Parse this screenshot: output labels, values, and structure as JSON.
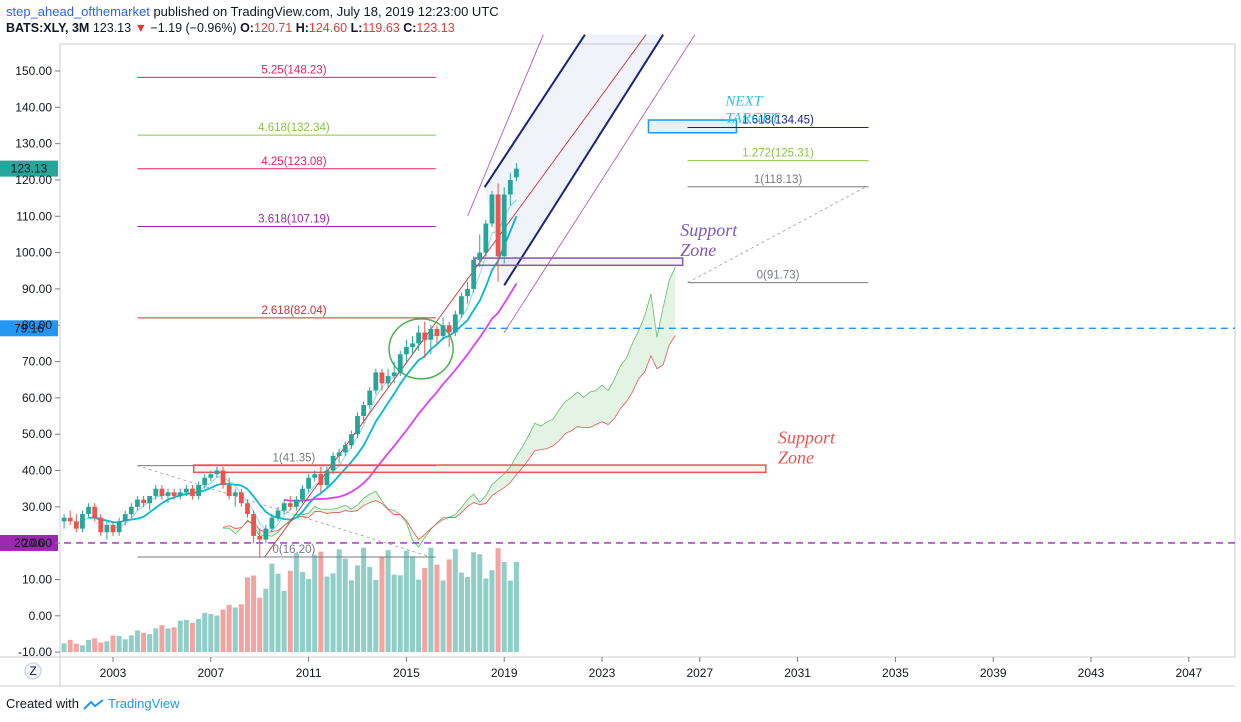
{
  "header": {
    "author": "step_ahead_ofthemarket",
    "published": "published on TradingView.com, July 18, 2019 12:23:00 UTC",
    "symbol": "BATS:XLY, 3M",
    "last": "123.13",
    "change": "−1.19 (−0.96%)",
    "open_label": "O:",
    "open": "120.71",
    "high_label": "H:",
    "high": "124.60",
    "low_label": "L:",
    "low": "119.63",
    "close_label": "C:",
    "close": "123.13"
  },
  "footer": {
    "created_with": "Created with",
    "brand": "TradingView"
  },
  "zoom_button": "Z",
  "colors": {
    "up": "#26a69a",
    "down": "#ef5350",
    "fib_red": "#d32f2f",
    "fib_pink": "#e91e63",
    "fib_green": "#8bc34a",
    "fib_purple": "#9c27b0",
    "fib_gray": "#787b86",
    "channel_blue": "#1a237e",
    "price_badge": "#26a69a",
    "hline_blue": "#2196f3",
    "hline_purple": "#9c27b0",
    "note_teal": "#26c6da",
    "note_purple": "#7e57c2",
    "note_red": "#ef5350"
  },
  "chart_data": {
    "type": "candlestick",
    "title": "",
    "y_axis": {
      "range": [
        -10,
        155
      ],
      "ticks": [
        "150.00",
        "140.00",
        "130.00",
        "120.00",
        "110.00",
        "100.00",
        "90.00",
        "80.00",
        "70.00",
        "60.00",
        "50.00",
        "40.00",
        "30.00",
        "20.00",
        "10.00",
        "0.00",
        "-10.00"
      ]
    },
    "x_axis": {
      "range": [
        2000.5,
        2049.5
      ],
      "ticks": [
        "2003",
        "2007",
        "2011",
        "2015",
        "2019",
        "2023",
        "2027",
        "2031",
        "2035",
        "2039",
        "2043",
        "2047"
      ]
    },
    "price_badges": [
      {
        "label": "123.13",
        "value": 123.13,
        "color": "#26a69a"
      },
      {
        "label": "79.16",
        "value": 79.16,
        "color": "#2196f3"
      },
      {
        "label": "20.06",
        "value": 20.06,
        "color": "#9c27b0"
      }
    ],
    "horizontal_lines": [
      {
        "value": 79.16,
        "color": "#2196f3",
        "style": "dashed",
        "from": 2016.9
      },
      {
        "value": 20.06,
        "color": "#9c27b0",
        "style": "dashed",
        "from": 2001.0
      }
    ],
    "candles": [
      {
        "t": 2001.0,
        "o": 26,
        "h": 28,
        "l": 24,
        "c": 27
      },
      {
        "t": 2001.25,
        "o": 27,
        "h": 29,
        "l": 25,
        "c": 26
      },
      {
        "t": 2001.5,
        "o": 26,
        "h": 28,
        "l": 23,
        "c": 24
      },
      {
        "t": 2001.75,
        "o": 24,
        "h": 29,
        "l": 23,
        "c": 28
      },
      {
        "t": 2002.0,
        "o": 28,
        "h": 31,
        "l": 27,
        "c": 30
      },
      {
        "t": 2002.25,
        "o": 30,
        "h": 31,
        "l": 26,
        "c": 27
      },
      {
        "t": 2002.5,
        "o": 27,
        "h": 28,
        "l": 22,
        "c": 23
      },
      {
        "t": 2002.75,
        "o": 23,
        "h": 26,
        "l": 21,
        "c": 25
      },
      {
        "t": 2003.0,
        "o": 25,
        "h": 26,
        "l": 22,
        "c": 23
      },
      {
        "t": 2003.25,
        "o": 23,
        "h": 27,
        "l": 22,
        "c": 26
      },
      {
        "t": 2003.5,
        "o": 26,
        "h": 29,
        "l": 25,
        "c": 28
      },
      {
        "t": 2003.75,
        "o": 28,
        "h": 31,
        "l": 27,
        "c": 30
      },
      {
        "t": 2004.0,
        "o": 30,
        "h": 33,
        "l": 29,
        "c": 32
      },
      {
        "t": 2004.25,
        "o": 32,
        "h": 33,
        "l": 30,
        "c": 31
      },
      {
        "t": 2004.5,
        "o": 31,
        "h": 33,
        "l": 29,
        "c": 33
      },
      {
        "t": 2004.75,
        "o": 33,
        "h": 36,
        "l": 32,
        "c": 35
      },
      {
        "t": 2005.0,
        "o": 35,
        "h": 36,
        "l": 32,
        "c": 33
      },
      {
        "t": 2005.25,
        "o": 33,
        "h": 35,
        "l": 31,
        "c": 34
      },
      {
        "t": 2005.5,
        "o": 34,
        "h": 35,
        "l": 32,
        "c": 33
      },
      {
        "t": 2005.75,
        "o": 33,
        "h": 35,
        "l": 32,
        "c": 34
      },
      {
        "t": 2006.0,
        "o": 34,
        "h": 36,
        "l": 33,
        "c": 35
      },
      {
        "t": 2006.25,
        "o": 35,
        "h": 36,
        "l": 32,
        "c": 33
      },
      {
        "t": 2006.5,
        "o": 33,
        "h": 37,
        "l": 32,
        "c": 36
      },
      {
        "t": 2006.75,
        "o": 36,
        "h": 39,
        "l": 35,
        "c": 38
      },
      {
        "t": 2007.0,
        "o": 38,
        "h": 40,
        "l": 37,
        "c": 39
      },
      {
        "t": 2007.25,
        "o": 39,
        "h": 41,
        "l": 38,
        "c": 40
      },
      {
        "t": 2007.5,
        "o": 40,
        "h": 41,
        "l": 35,
        "c": 36
      },
      {
        "t": 2007.75,
        "o": 36,
        "h": 38,
        "l": 32,
        "c": 33
      },
      {
        "t": 2008.0,
        "o": 33,
        "h": 35,
        "l": 30,
        "c": 34
      },
      {
        "t": 2008.25,
        "o": 34,
        "h": 35,
        "l": 30,
        "c": 31
      },
      {
        "t": 2008.5,
        "o": 31,
        "h": 32,
        "l": 27,
        "c": 28
      },
      {
        "t": 2008.75,
        "o": 28,
        "h": 29,
        "l": 20,
        "c": 22
      },
      {
        "t": 2009.0,
        "o": 22,
        "h": 24,
        "l": 16,
        "c": 21
      },
      {
        "t": 2009.25,
        "o": 21,
        "h": 25,
        "l": 20,
        "c": 24
      },
      {
        "t": 2009.5,
        "o": 24,
        "h": 28,
        "l": 23,
        "c": 27
      },
      {
        "t": 2009.75,
        "o": 27,
        "h": 30,
        "l": 26,
        "c": 29
      },
      {
        "t": 2010.0,
        "o": 29,
        "h": 32,
        "l": 28,
        "c": 31
      },
      {
        "t": 2010.25,
        "o": 31,
        "h": 33,
        "l": 29,
        "c": 30
      },
      {
        "t": 2010.5,
        "o": 30,
        "h": 33,
        "l": 29,
        "c": 32
      },
      {
        "t": 2010.75,
        "o": 32,
        "h": 36,
        "l": 31,
        "c": 35
      },
      {
        "t": 2011.0,
        "o": 35,
        "h": 39,
        "l": 34,
        "c": 38
      },
      {
        "t": 2011.25,
        "o": 38,
        "h": 40,
        "l": 37,
        "c": 39
      },
      {
        "t": 2011.5,
        "o": 39,
        "h": 41,
        "l": 34,
        "c": 36
      },
      {
        "t": 2011.75,
        "o": 36,
        "h": 41,
        "l": 35,
        "c": 40
      },
      {
        "t": 2012.0,
        "o": 40,
        "h": 45,
        "l": 39,
        "c": 44
      },
      {
        "t": 2012.25,
        "o": 44,
        "h": 46,
        "l": 42,
        "c": 45
      },
      {
        "t": 2012.5,
        "o": 45,
        "h": 48,
        "l": 44,
        "c": 47
      },
      {
        "t": 2012.75,
        "o": 47,
        "h": 51,
        "l": 46,
        "c": 50
      },
      {
        "t": 2013.0,
        "o": 50,
        "h": 56,
        "l": 49,
        "c": 55
      },
      {
        "t": 2013.25,
        "o": 55,
        "h": 59,
        "l": 53,
        "c": 58
      },
      {
        "t": 2013.5,
        "o": 58,
        "h": 63,
        "l": 57,
        "c": 62
      },
      {
        "t": 2013.75,
        "o": 62,
        "h": 68,
        "l": 61,
        "c": 67
      },
      {
        "t": 2014.0,
        "o": 67,
        "h": 68,
        "l": 62,
        "c": 64
      },
      {
        "t": 2014.25,
        "o": 64,
        "h": 68,
        "l": 63,
        "c": 66
      },
      {
        "t": 2014.5,
        "o": 66,
        "h": 70,
        "l": 64,
        "c": 67
      },
      {
        "t": 2014.75,
        "o": 67,
        "h": 73,
        "l": 66,
        "c": 72
      },
      {
        "t": 2015.0,
        "o": 72,
        "h": 76,
        "l": 70,
        "c": 74
      },
      {
        "t": 2015.25,
        "o": 74,
        "h": 77,
        "l": 72,
        "c": 75
      },
      {
        "t": 2015.5,
        "o": 75,
        "h": 80,
        "l": 73,
        "c": 78
      },
      {
        "t": 2015.75,
        "o": 78,
        "h": 81,
        "l": 71,
        "c": 76
      },
      {
        "t": 2016.0,
        "o": 76,
        "h": 80,
        "l": 72,
        "c": 79
      },
      {
        "t": 2016.25,
        "o": 79,
        "h": 80,
        "l": 75,
        "c": 77
      },
      {
        "t": 2016.5,
        "o": 77,
        "h": 82,
        "l": 76,
        "c": 80
      },
      {
        "t": 2016.75,
        "o": 80,
        "h": 81,
        "l": 74,
        "c": 78
      },
      {
        "t": 2017.0,
        "o": 78,
        "h": 84,
        "l": 77,
        "c": 83
      },
      {
        "t": 2017.25,
        "o": 83,
        "h": 89,
        "l": 82,
        "c": 88
      },
      {
        "t": 2017.5,
        "o": 88,
        "h": 92,
        "l": 86,
        "c": 90
      },
      {
        "t": 2017.75,
        "o": 90,
        "h": 99,
        "l": 89,
        "c": 98
      },
      {
        "t": 2018.0,
        "o": 98,
        "h": 105,
        "l": 96,
        "c": 100
      },
      {
        "t": 2018.25,
        "o": 100,
        "h": 109,
        "l": 99,
        "c": 108
      },
      {
        "t": 2018.5,
        "o": 108,
        "h": 117,
        "l": 107,
        "c": 116
      },
      {
        "t": 2018.75,
        "o": 116,
        "h": 119,
        "l": 92,
        "c": 99
      },
      {
        "t": 2019.0,
        "o": 99,
        "h": 118,
        "l": 97,
        "c": 116
      },
      {
        "t": 2019.25,
        "o": 116,
        "h": 122,
        "l": 113,
        "c": 120
      },
      {
        "t": 2019.5,
        "o": 120.71,
        "h": 124.6,
        "l": 119.63,
        "c": 123.13
      }
    ],
    "volume_note": "volume bars rendered as relative heights at bottom of pane",
    "fibonacci_extension_left": [
      {
        "label": "5.25(148.23)",
        "value": 148.23,
        "color": "#e91e63"
      },
      {
        "label": "4.618(132.34)",
        "value": 132.34,
        "color": "#8bc34a"
      },
      {
        "label": "4.25(123.08)",
        "value": 123.08,
        "color": "#e91e63"
      },
      {
        "label": "3.618(107.19)",
        "value": 107.19,
        "color": "#9c27b0"
      },
      {
        "label": "2.618(82.04)",
        "value": 82.04,
        "color": "#d32f2f"
      },
      {
        "label": "1(41.35)",
        "value": 41.35,
        "color": "#787b86"
      },
      {
        "label": "0(16.20)",
        "value": 16.2,
        "color": "#787b86"
      }
    ],
    "fibonacci_extension_right": [
      {
        "label": "1.618(134.45)",
        "value": 134.45,
        "color": "#1a237e"
      },
      {
        "label": "1.272(125.31)",
        "value": 125.31,
        "color": "#8bc34a"
      },
      {
        "label": "1(118.13)",
        "value": 118.13,
        "color": "#787b86"
      },
      {
        "label": "0(91.73)",
        "value": 91.73,
        "color": "#787b86"
      }
    ],
    "annotations": [
      {
        "text_lines": [
          "NEXT",
          "TARGET"
        ],
        "color": "#26c6da"
      },
      {
        "text_lines": [
          "Support",
          "Zone"
        ],
        "color": "#7e57c2"
      },
      {
        "text_lines": [
          "Support",
          "Zone"
        ],
        "color": "#ef5350"
      }
    ],
    "support_zones": [
      {
        "range": [
          39.5,
          41.5
        ],
        "color": "#ef5350"
      },
      {
        "range": [
          96.5,
          98.5
        ],
        "color": "#7e57c2"
      },
      {
        "range": [
          133,
          136.5
        ],
        "color": "#2196f3"
      }
    ]
  }
}
